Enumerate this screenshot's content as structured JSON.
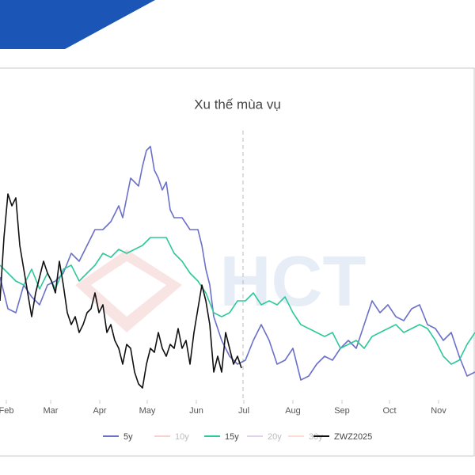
{
  "chart_data": {
    "type": "line",
    "title": "Xu thế mùa vụ",
    "watermark": "HCT",
    "xlim": [
      28,
      328
    ],
    "ylim": [
      0,
      100
    ],
    "xticks": [
      {
        "value": 32,
        "label": "Feb"
      },
      {
        "value": 60,
        "label": "Mar"
      },
      {
        "value": 91,
        "label": "Apr"
      },
      {
        "value": 121,
        "label": "May"
      },
      {
        "value": 152,
        "label": "Jun"
      },
      {
        "value": 182,
        "label": "Jul"
      },
      {
        "value": 213,
        "label": "Aug"
      },
      {
        "value": 244,
        "label": "Sep"
      },
      {
        "value": 274,
        "label": "Oct"
      },
      {
        "value": 305,
        "label": "Nov"
      }
    ],
    "series": [
      {
        "name": "5y",
        "color": "#6b70c8",
        "visible": true,
        "x": [
          28,
          33,
          38,
          43,
          48,
          53,
          58,
          63,
          68,
          73,
          78,
          83,
          88,
          93,
          98,
          103,
          105.5,
          110.5,
          115.5,
          118,
          120.5,
          123,
          125.5,
          128,
          130.5,
          133,
          135.5,
          138,
          143,
          148,
          153,
          155.5,
          158,
          160.5,
          163,
          168,
          173,
          178,
          183,
          188,
          193,
          198,
          203,
          208,
          213,
          218,
          223,
          228,
          233,
          238,
          243,
          248,
          253,
          258,
          263,
          268,
          273,
          278,
          283,
          288,
          293,
          298,
          303,
          308,
          313,
          318,
          323,
          328
        ],
        "values": [
          38.75,
          28.75,
          27.5,
          36.25,
          32.5,
          30,
          36.25,
          37.5,
          40,
          46.25,
          43.75,
          48.75,
          53.75,
          53.75,
          56.25,
          61.25,
          57.5,
          70,
          67.5,
          73.75,
          78.75,
          80,
          72.5,
          70,
          66.25,
          68.75,
          60,
          57.5,
          57.5,
          53.75,
          53.75,
          48.75,
          41.25,
          36.25,
          26.25,
          18.75,
          13.75,
          11.25,
          12.5,
          18.75,
          23.75,
          18.75,
          11.25,
          12.5,
          16.25,
          6.25,
          7.5,
          11.25,
          13.75,
          12.5,
          16.25,
          18.75,
          16.25,
          23.75,
          31.25,
          27.5,
          30,
          26.25,
          25,
          28.75,
          30,
          23.75,
          22.5,
          18.75,
          21.25,
          13.75,
          7.5,
          8.75
        ]
      },
      {
        "name": "10y",
        "color": "#f4b6ac",
        "visible": false
      },
      {
        "name": "15y",
        "color": "#2ec99a",
        "visible": true,
        "x": [
          28,
          33,
          38,
          43,
          48,
          53,
          58,
          63,
          68,
          73,
          78,
          83,
          88,
          93,
          98,
          103,
          108,
          113,
          118,
          123,
          128,
          133,
          138,
          143,
          148,
          153,
          158,
          163,
          168,
          173,
          178,
          183,
          188,
          193,
          198,
          203,
          208,
          213,
          218,
          223,
          228,
          233,
          238,
          243,
          248,
          253,
          258,
          263,
          268,
          273,
          278,
          283,
          288,
          293,
          298,
          303,
          308,
          313,
          318,
          323,
          328
        ],
        "values": [
          42.5,
          40,
          37.5,
          36.25,
          41.25,
          35,
          40,
          35,
          41.25,
          42.5,
          37.5,
          40,
          42.5,
          46.25,
          45,
          47.5,
          46.25,
          47.5,
          48.75,
          51.25,
          51.25,
          51.25,
          46.25,
          43.75,
          40,
          37.5,
          33.75,
          27.5,
          26.25,
          27.5,
          31.25,
          31.25,
          33.75,
          30,
          31.25,
          30,
          32.5,
          27.5,
          23.75,
          22.5,
          21.25,
          20,
          21.25,
          16.25,
          17.5,
          18.75,
          16.25,
          20,
          21.25,
          22.5,
          23.75,
          21.25,
          22.5,
          23.75,
          22.5,
          18.75,
          13.75,
          11.25,
          12.5,
          17.5,
          21.25
        ]
      },
      {
        "name": "20y",
        "color": "#cdb4e6",
        "visible": false
      },
      {
        "name": "30y",
        "color": "#f7c9bb",
        "visible": false
      },
      {
        "name": "ZWZ2025",
        "color": "#111111",
        "visible": true,
        "x": [
          28,
          30.5,
          33,
          35.5,
          38,
          40.5,
          43,
          45.5,
          48,
          50.5,
          53,
          55.5,
          58,
          60.5,
          63,
          65.5,
          68,
          70.5,
          73,
          75.5,
          78,
          80.5,
          83,
          85.5,
          88,
          90.5,
          93,
          95.5,
          98,
          100.5,
          103,
          105.5,
          108,
          110.5,
          113,
          115.5,
          118,
          120.5,
          123,
          125.5,
          128,
          130.5,
          133,
          135.5,
          138,
          140.5,
          143,
          145.5,
          148,
          150.5,
          153,
          155.5,
          158,
          160.5,
          163,
          165.5,
          168,
          170.5,
          173,
          175.5,
          178,
          180.5
        ],
        "values": [
          31.25,
          51.25,
          65,
          61.25,
          63.75,
          48.75,
          41.25,
          33.75,
          26.25,
          33.75,
          38.75,
          43.75,
          40,
          37.5,
          33.75,
          43.75,
          36.25,
          27.5,
          23.75,
          26.25,
          21.25,
          23.75,
          27.5,
          28.75,
          33.75,
          27.5,
          30,
          21.25,
          23.75,
          18.75,
          16.25,
          11.25,
          17.5,
          16.25,
          8.75,
          5,
          3.75,
          11.25,
          16.25,
          15,
          21.25,
          16.25,
          13.75,
          17.5,
          16.25,
          22.5,
          16.25,
          18.75,
          11.25,
          21.25,
          28.75,
          36.25,
          31.25,
          23.75,
          8.75,
          13.75,
          8.75,
          21.25,
          16.25,
          11.25,
          13.75,
          10
        ]
      }
    ]
  }
}
